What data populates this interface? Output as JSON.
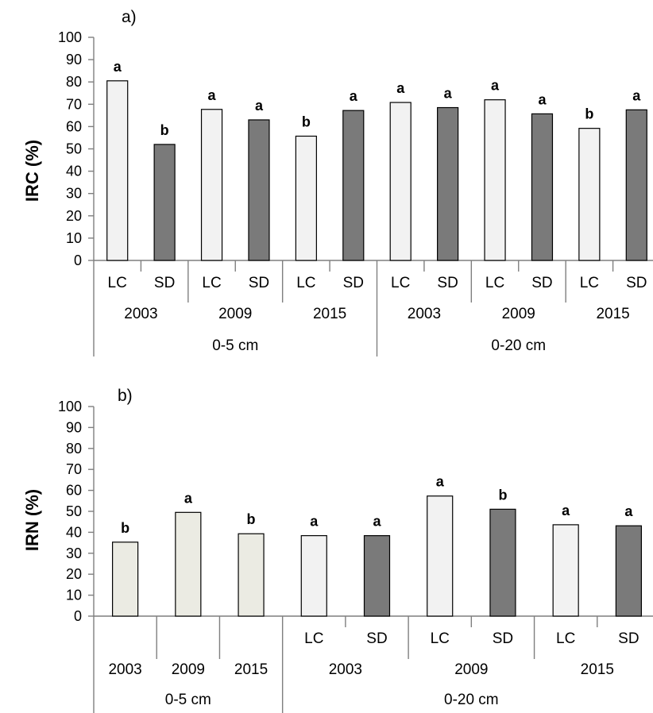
{
  "chart_data": [
    {
      "type": "bar",
      "panel_label": "a)",
      "ylabel": "IRC (%)",
      "ylim": [
        0,
        100
      ],
      "yticks": [
        0,
        10,
        20,
        30,
        40,
        50,
        60,
        70,
        80,
        90,
        100
      ],
      "colors": {
        "LC": "#f2f2f2",
        "SD": "#7a7a7a"
      },
      "bars": [
        {
          "label": "LC",
          "value": 80.5,
          "sig": "a",
          "fill": "LC"
        },
        {
          "label": "SD",
          "value": 52,
          "sig": "b",
          "fill": "SD"
        },
        {
          "label": "LC",
          "value": 67.7,
          "sig": "a",
          "fill": "LC"
        },
        {
          "label": "SD",
          "value": 63,
          "sig": "a",
          "fill": "SD"
        },
        {
          "label": "LC",
          "value": 55.7,
          "sig": "b",
          "fill": "LC"
        },
        {
          "label": "SD",
          "value": 67.2,
          "sig": "a",
          "fill": "SD"
        },
        {
          "label": "LC",
          "value": 70.8,
          "sig": "a",
          "fill": "LC"
        },
        {
          "label": "SD",
          "value": 68.5,
          "sig": "a",
          "fill": "SD"
        },
        {
          "label": "LC",
          "value": 72,
          "sig": "a",
          "fill": "LC"
        },
        {
          "label": "SD",
          "value": 65.7,
          "sig": "a",
          "fill": "SD"
        },
        {
          "label": "LC",
          "value": 59.2,
          "sig": "b",
          "fill": "LC"
        },
        {
          "label": "SD",
          "value": 67.5,
          "sig": "a",
          "fill": "SD"
        }
      ],
      "years": [
        {
          "label": "2003",
          "span": [
            0,
            2
          ]
        },
        {
          "label": "2009",
          "span": [
            2,
            4
          ]
        },
        {
          "label": "2015",
          "span": [
            4,
            6
          ]
        },
        {
          "label": "2003",
          "span": [
            6,
            8
          ]
        },
        {
          "label": "2009",
          "span": [
            8,
            10
          ]
        },
        {
          "label": "2015",
          "span": [
            10,
            12
          ]
        }
      ],
      "depths": [
        {
          "label": "0-5 cm",
          "span": [
            0,
            6
          ]
        },
        {
          "label": "0-20 cm",
          "span": [
            6,
            12
          ]
        }
      ]
    },
    {
      "type": "bar",
      "panel_label": "b)",
      "ylabel": "IRN (%)",
      "ylim": [
        0,
        100
      ],
      "yticks": [
        0,
        10,
        20,
        30,
        40,
        50,
        60,
        70,
        80,
        90,
        100
      ],
      "colors": {
        "base": "#ebebe3",
        "LC": "#f2f2f2",
        "SD": "#7a7a7a"
      },
      "bars": [
        {
          "label": "",
          "value": 35.3,
          "sig": "b",
          "fill": "base"
        },
        {
          "label": "",
          "value": 49.5,
          "sig": "a",
          "fill": "base"
        },
        {
          "label": "",
          "value": 39.3,
          "sig": "b",
          "fill": "base"
        },
        {
          "label": "LC",
          "value": 38.4,
          "sig": "a",
          "fill": "LC"
        },
        {
          "label": "SD",
          "value": 38.4,
          "sig": "a",
          "fill": "SD"
        },
        {
          "label": "LC",
          "value": 57.3,
          "sig": "a",
          "fill": "LC"
        },
        {
          "label": "SD",
          "value": 51,
          "sig": "b",
          "fill": "SD"
        },
        {
          "label": "LC",
          "value": 43.6,
          "sig": "a",
          "fill": "LC"
        },
        {
          "label": "SD",
          "value": 43.1,
          "sig": "a",
          "fill": "SD"
        }
      ],
      "years": [
        {
          "label": "2003",
          "span": [
            0,
            1
          ]
        },
        {
          "label": "2009",
          "span": [
            1,
            2
          ]
        },
        {
          "label": "2015",
          "span": [
            2,
            3
          ]
        },
        {
          "label": "2003",
          "span": [
            3,
            5
          ]
        },
        {
          "label": "2009",
          "span": [
            5,
            7
          ]
        },
        {
          "label": "2015",
          "span": [
            7,
            9
          ]
        }
      ],
      "depths": [
        {
          "label": "0-5 cm",
          "span": [
            0,
            3
          ]
        },
        {
          "label": "0-20 cm",
          "span": [
            3,
            9
          ]
        }
      ]
    }
  ]
}
